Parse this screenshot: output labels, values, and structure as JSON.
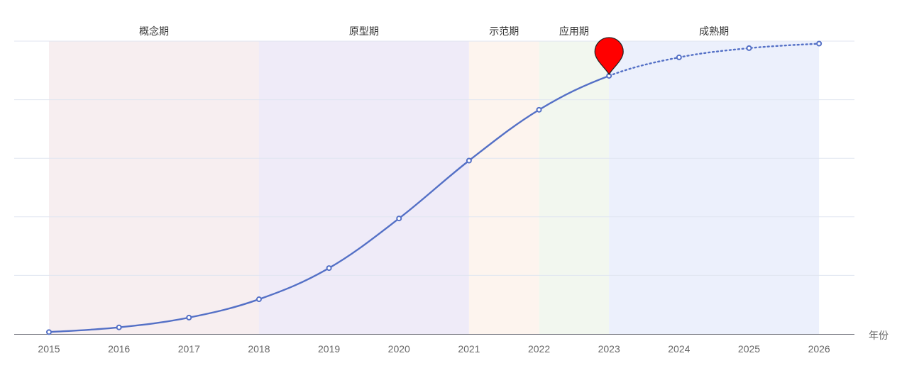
{
  "chart_data": {
    "type": "line",
    "x": [
      "2015",
      "2016",
      "2017",
      "2018",
      "2019",
      "2020",
      "2021",
      "2022",
      "2023",
      "2024",
      "2025",
      "2026"
    ],
    "values": [
      1.3,
      4.5,
      11.2,
      23.7,
      45.0,
      78.9,
      118.4,
      153.1,
      176.3,
      188.9,
      195.2,
      198.3
    ],
    "forecast_from": "2023",
    "ylim": [
      0,
      200
    ],
    "y_gridlines": 5,
    "y_tick_labels_shown": false,
    "xlabel": "年份",
    "marker_at": "2023",
    "phases": [
      {
        "label": "概念期",
        "start": "2015",
        "end": "2018",
        "color": "#f7eef0"
      },
      {
        "label": "原型期",
        "start": "2018",
        "end": "2021",
        "color": "#efebf8"
      },
      {
        "label": "示范期",
        "start": "2021",
        "end": "2022",
        "color": "#fdf4ee"
      },
      {
        "label": "应用期",
        "start": "2022",
        "end": "2023",
        "color": "#f2f7ef"
      },
      {
        "label": "成熟期",
        "start": "2023",
        "end": "2026",
        "color": "#ecf0fc"
      }
    ],
    "colors": {
      "line": "#5470c6",
      "marker": "#ff0000",
      "grid": "#e0e6f1",
      "axis": "#6e7079"
    }
  }
}
